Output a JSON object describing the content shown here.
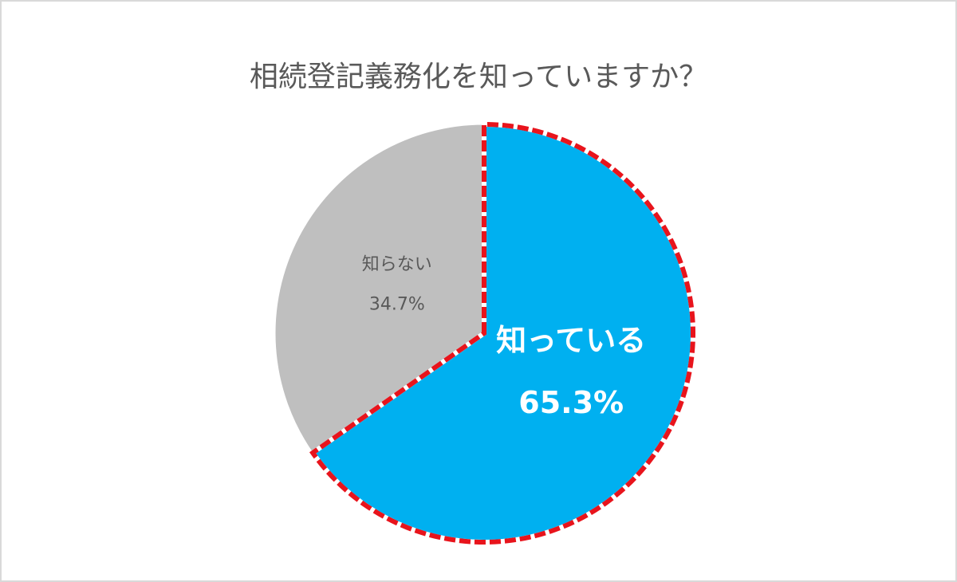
{
  "chart_data": {
    "type": "pie",
    "title": "相続登記義務化を知っていますか？",
    "categories": [
      "知っている",
      "知らない"
    ],
    "values": [
      65.3,
      34.7
    ],
    "value_labels": [
      "65.3%",
      "34.7%"
    ],
    "colors": [
      "#00b0f0",
      "#bfbfbf"
    ],
    "highlight": 0,
    "highlight_color": "#e8141c"
  }
}
